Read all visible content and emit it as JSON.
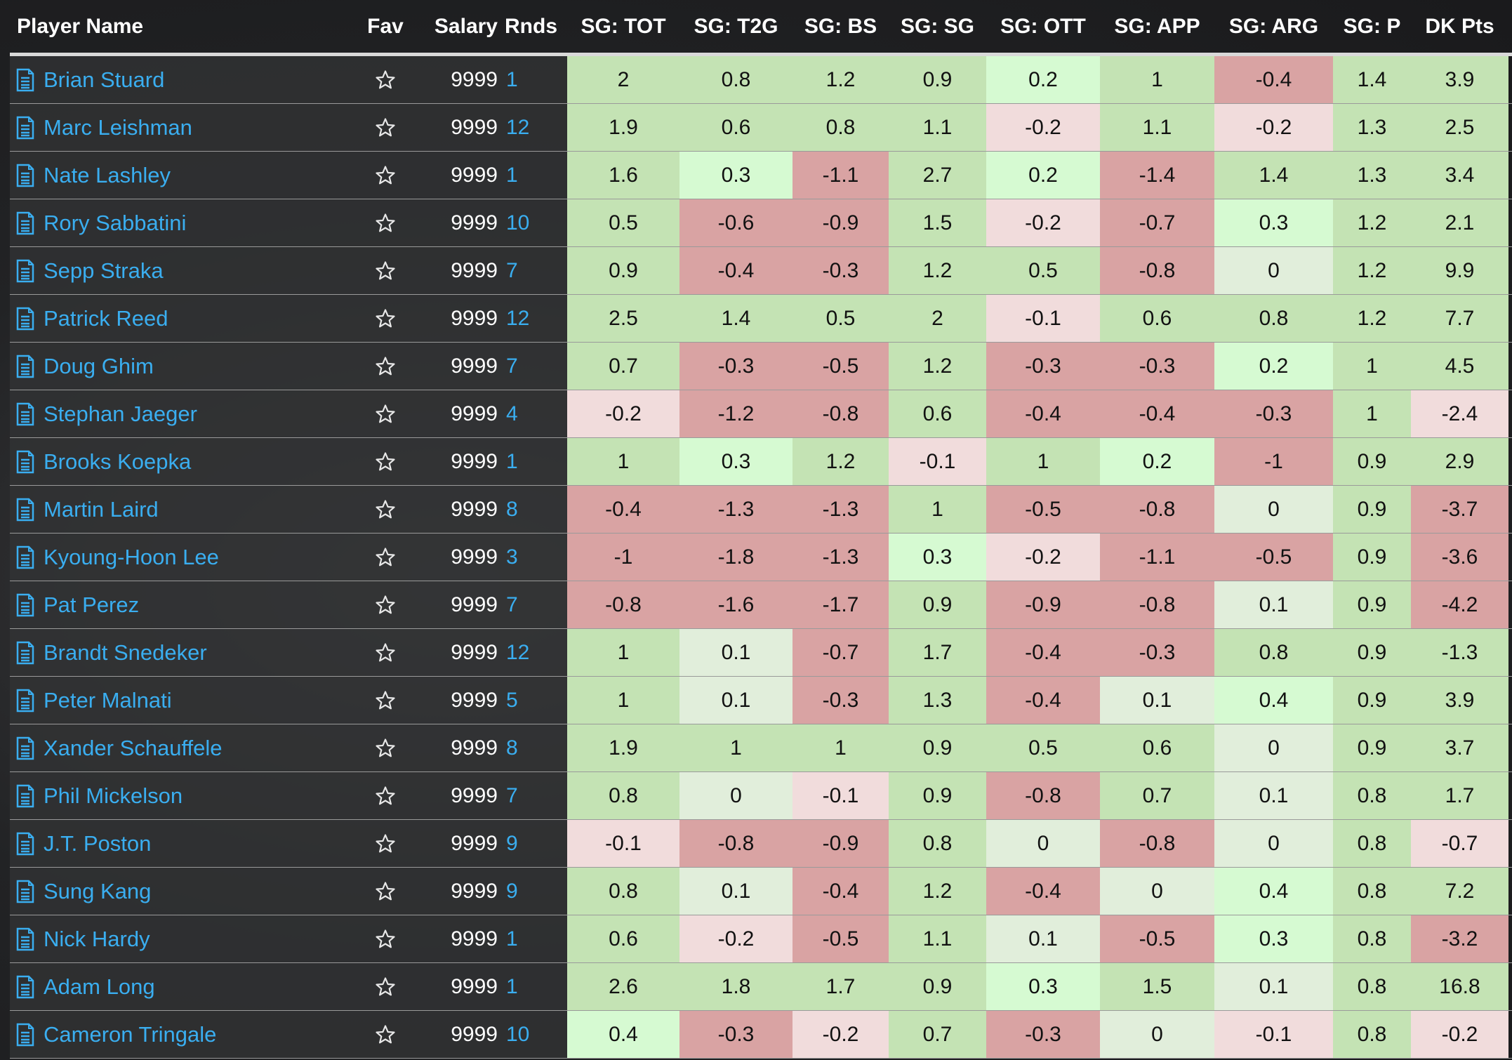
{
  "header": {
    "player_name": "Player Name",
    "fav": "Fav",
    "salary": "Salary",
    "rnds": "Rnds",
    "sg_tot": "SG: TOT",
    "sg_t2g": "SG: T2G",
    "sg_bs": "SG: BS",
    "sg_sg": "SG: SG",
    "sg_ott": "SG: OTT",
    "sg_app": "SG: APP",
    "sg_arg": "SG: ARG",
    "sg_p": "SG: P",
    "dk_pts": "DK Pts"
  },
  "colors": {
    "dark_red": "#d9a3a3",
    "light_red": "#f1dcdc",
    "mid_green": "#c4e3b4",
    "light_green": "#d6fad2",
    "pale_green": "#e1eedb",
    "link_blue": "#3aaef0"
  },
  "rows": [
    {
      "name": "Brian Stuard",
      "salary": "9999",
      "rnds": "1",
      "tot": "2",
      "t2g": "0.8",
      "bs": "1.2",
      "sg": "0.9",
      "ott": "0.2",
      "app": "1",
      "arg": "-0.4",
      "p": "1.4",
      "dk": "3.9",
      "c": [
        "g",
        "g",
        "g",
        "g",
        "lg",
        "g",
        "r",
        "g",
        "g"
      ]
    },
    {
      "name": "Marc Leishman",
      "salary": "9999",
      "rnds": "12",
      "tot": "1.9",
      "t2g": "0.6",
      "bs": "0.8",
      "sg": "1.1",
      "ott": "-0.2",
      "app": "1.1",
      "arg": "-0.2",
      "p": "1.3",
      "dk": "2.5",
      "c": [
        "g",
        "g",
        "g",
        "g",
        "lr",
        "g",
        "lr",
        "g",
        "g"
      ]
    },
    {
      "name": "Nate Lashley",
      "salary": "9999",
      "rnds": "1",
      "tot": "1.6",
      "t2g": "0.3",
      "bs": "-1.1",
      "sg": "2.7",
      "ott": "0.2",
      "app": "-1.4",
      "arg": "1.4",
      "p": "1.3",
      "dk": "3.4",
      "c": [
        "g",
        "lg",
        "r",
        "g",
        "lg",
        "r",
        "g",
        "g",
        "g"
      ]
    },
    {
      "name": "Rory Sabbatini",
      "salary": "9999",
      "rnds": "10",
      "tot": "0.5",
      "t2g": "-0.6",
      "bs": "-0.9",
      "sg": "1.5",
      "ott": "-0.2",
      "app": "-0.7",
      "arg": "0.3",
      "p": "1.2",
      "dk": "2.1",
      "c": [
        "g",
        "r",
        "r",
        "g",
        "lr",
        "r",
        "lg",
        "g",
        "g"
      ]
    },
    {
      "name": "Sepp Straka",
      "salary": "9999",
      "rnds": "7",
      "tot": "0.9",
      "t2g": "-0.4",
      "bs": "-0.3",
      "sg": "1.2",
      "ott": "0.5",
      "app": "-0.8",
      "arg": "0",
      "p": "1.2",
      "dk": "9.9",
      "c": [
        "g",
        "r",
        "r",
        "g",
        "g",
        "r",
        "pg",
        "g",
        "g"
      ]
    },
    {
      "name": "Patrick Reed",
      "salary": "9999",
      "rnds": "12",
      "tot": "2.5",
      "t2g": "1.4",
      "bs": "0.5",
      "sg": "2",
      "ott": "-0.1",
      "app": "0.6",
      "arg": "0.8",
      "p": "1.2",
      "dk": "7.7",
      "c": [
        "g",
        "g",
        "g",
        "g",
        "lr",
        "g",
        "g",
        "g",
        "g"
      ]
    },
    {
      "name": "Doug Ghim",
      "salary": "9999",
      "rnds": "7",
      "tot": "0.7",
      "t2g": "-0.3",
      "bs": "-0.5",
      "sg": "1.2",
      "ott": "-0.3",
      "app": "-0.3",
      "arg": "0.2",
      "p": "1",
      "dk": "4.5",
      "c": [
        "g",
        "r",
        "r",
        "g",
        "r",
        "r",
        "lg",
        "g",
        "g"
      ]
    },
    {
      "name": "Stephan Jaeger",
      "salary": "9999",
      "rnds": "4",
      "tot": "-0.2",
      "t2g": "-1.2",
      "bs": "-0.8",
      "sg": "0.6",
      "ott": "-0.4",
      "app": "-0.4",
      "arg": "-0.3",
      "p": "1",
      "dk": "-2.4",
      "c": [
        "lr",
        "r",
        "r",
        "g",
        "r",
        "r",
        "r",
        "g",
        "lr"
      ]
    },
    {
      "name": "Brooks Koepka",
      "salary": "9999",
      "rnds": "1",
      "tot": "1",
      "t2g": "0.3",
      "bs": "1.2",
      "sg": "-0.1",
      "ott": "1",
      "app": "0.2",
      "arg": "-1",
      "p": "0.9",
      "dk": "2.9",
      "c": [
        "g",
        "lg",
        "g",
        "lr",
        "g",
        "lg",
        "r",
        "g",
        "g"
      ]
    },
    {
      "name": "Martin Laird",
      "salary": "9999",
      "rnds": "8",
      "tot": "-0.4",
      "t2g": "-1.3",
      "bs": "-1.3",
      "sg": "1",
      "ott": "-0.5",
      "app": "-0.8",
      "arg": "0",
      "p": "0.9",
      "dk": "-3.7",
      "c": [
        "r",
        "r",
        "r",
        "g",
        "r",
        "r",
        "pg",
        "g",
        "r"
      ]
    },
    {
      "name": "Kyoung-Hoon Lee",
      "salary": "9999",
      "rnds": "3",
      "tot": "-1",
      "t2g": "-1.8",
      "bs": "-1.3",
      "sg": "0.3",
      "ott": "-0.2",
      "app": "-1.1",
      "arg": "-0.5",
      "p": "0.9",
      "dk": "-3.6",
      "c": [
        "r",
        "r",
        "r",
        "lg",
        "lr",
        "r",
        "r",
        "g",
        "r"
      ]
    },
    {
      "name": "Pat Perez",
      "salary": "9999",
      "rnds": "7",
      "tot": "-0.8",
      "t2g": "-1.6",
      "bs": "-1.7",
      "sg": "0.9",
      "ott": "-0.9",
      "app": "-0.8",
      "arg": "0.1",
      "p": "0.9",
      "dk": "-4.2",
      "c": [
        "r",
        "r",
        "r",
        "g",
        "r",
        "r",
        "pg",
        "g",
        "r"
      ]
    },
    {
      "name": "Brandt Snedeker",
      "salary": "9999",
      "rnds": "12",
      "tot": "1",
      "t2g": "0.1",
      "bs": "-0.7",
      "sg": "1.7",
      "ott": "-0.4",
      "app": "-0.3",
      "arg": "0.8",
      "p": "0.9",
      "dk": "-1.3",
      "c": [
        "g",
        "pg",
        "r",
        "g",
        "r",
        "r",
        "g",
        "g",
        "g"
      ]
    },
    {
      "name": "Peter Malnati",
      "salary": "9999",
      "rnds": "5",
      "tot": "1",
      "t2g": "0.1",
      "bs": "-0.3",
      "sg": "1.3",
      "ott": "-0.4",
      "app": "0.1",
      "arg": "0.4",
      "p": "0.9",
      "dk": "3.9",
      "c": [
        "g",
        "pg",
        "r",
        "g",
        "r",
        "pg",
        "lg",
        "g",
        "g"
      ]
    },
    {
      "name": "Xander Schauffele",
      "salary": "9999",
      "rnds": "8",
      "tot": "1.9",
      "t2g": "1",
      "bs": "1",
      "sg": "0.9",
      "ott": "0.5",
      "app": "0.6",
      "arg": "0",
      "p": "0.9",
      "dk": "3.7",
      "c": [
        "g",
        "g",
        "g",
        "g",
        "g",
        "g",
        "pg",
        "g",
        "g"
      ]
    },
    {
      "name": "Phil Mickelson",
      "salary": "9999",
      "rnds": "7",
      "tot": "0.8",
      "t2g": "0",
      "bs": "-0.1",
      "sg": "0.9",
      "ott": "-0.8",
      "app": "0.7",
      "arg": "0.1",
      "p": "0.8",
      "dk": "1.7",
      "c": [
        "g",
        "pg",
        "lr",
        "g",
        "r",
        "g",
        "pg",
        "g",
        "g"
      ]
    },
    {
      "name": "J.T. Poston",
      "salary": "9999",
      "rnds": "9",
      "tot": "-0.1",
      "t2g": "-0.8",
      "bs": "-0.9",
      "sg": "0.8",
      "ott": "0",
      "app": "-0.8",
      "arg": "0",
      "p": "0.8",
      "dk": "-0.7",
      "c": [
        "lr",
        "r",
        "r",
        "g",
        "pg",
        "r",
        "pg",
        "g",
        "lr"
      ]
    },
    {
      "name": "Sung Kang",
      "salary": "9999",
      "rnds": "9",
      "tot": "0.8",
      "t2g": "0.1",
      "bs": "-0.4",
      "sg": "1.2",
      "ott": "-0.4",
      "app": "0",
      "arg": "0.4",
      "p": "0.8",
      "dk": "7.2",
      "c": [
        "g",
        "pg",
        "r",
        "g",
        "r",
        "pg",
        "lg",
        "g",
        "g"
      ]
    },
    {
      "name": "Nick Hardy",
      "salary": "9999",
      "rnds": "1",
      "tot": "0.6",
      "t2g": "-0.2",
      "bs": "-0.5",
      "sg": "1.1",
      "ott": "0.1",
      "app": "-0.5",
      "arg": "0.3",
      "p": "0.8",
      "dk": "-3.2",
      "c": [
        "g",
        "lr",
        "r",
        "g",
        "pg",
        "r",
        "lg",
        "g",
        "r"
      ]
    },
    {
      "name": "Adam Long",
      "salary": "9999",
      "rnds": "1",
      "tot": "2.6",
      "t2g": "1.8",
      "bs": "1.7",
      "sg": "0.9",
      "ott": "0.3",
      "app": "1.5",
      "arg": "0.1",
      "p": "0.8",
      "dk": "16.8",
      "c": [
        "g",
        "g",
        "g",
        "g",
        "lg",
        "g",
        "pg",
        "g",
        "g"
      ]
    },
    {
      "name": "Cameron Tringale",
      "salary": "9999",
      "rnds": "10",
      "tot": "0.4",
      "t2g": "-0.3",
      "bs": "-0.2",
      "sg": "0.7",
      "ott": "-0.3",
      "app": "0",
      "arg": "-0.1",
      "p": "0.8",
      "dk": "-0.2",
      "c": [
        "lg",
        "r",
        "lr",
        "g",
        "r",
        "pg",
        "lr",
        "g",
        "lr"
      ]
    }
  ]
}
